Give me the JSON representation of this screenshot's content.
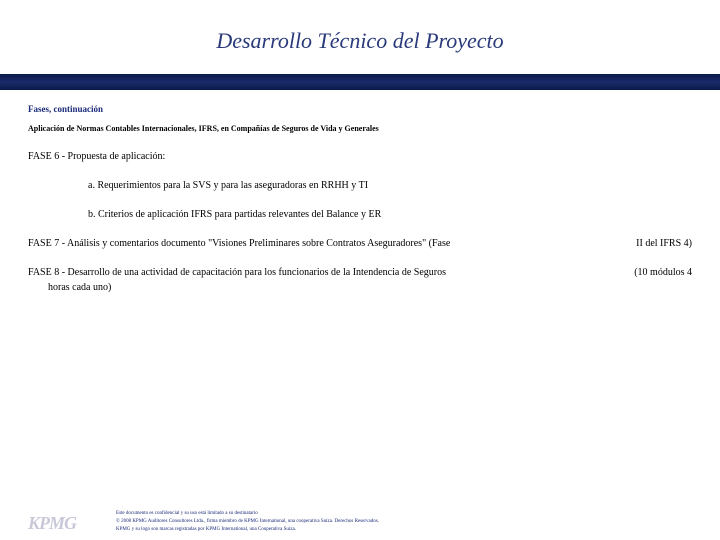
{
  "title": "Desarrollo Técnico del Proyecto",
  "section_label": "Fases, continuación",
  "subtitle": "Aplicación de Normas Contables Internacionales, IFRS, en Compañías de Seguros de Vida y Generales",
  "phase6": {
    "heading": "FASE 6 - Propuesta de aplicación:",
    "item_a": "a. Requerimientos para la SVS y para las aseguradoras en RRHH y TI",
    "item_b": "b. Criterios de aplicación IFRS para partidas relevantes del Balance y ER"
  },
  "phase7": {
    "left": "FASE 7 - Análisis y comentarios documento \"Visiones Preliminares sobre Contratos Aseguradores\" (Fase",
    "right": "II del IFRS 4)"
  },
  "phase8": {
    "left_line1": "FASE 8 - Desarrollo de una actividad de capacitación para los funcionarios de la Intendencia de Seguros",
    "left_line2": "horas cada uno)",
    "right": "(10 módulos 4"
  },
  "footer": {
    "logo": "KPMG",
    "line1": "Este documento es confidencial y su uso está limitado a su destinatario",
    "line2": "© 2008 KPMG Auditores Consultores Ltda., firma miembro de KPMG International, una cooperativa Suiza. Derechos Reservados.",
    "line3": "KPMG y su logo son marcas registradas por KPMG International, una Cooperativa Suiza."
  },
  "colors": {
    "title_color": "#2a3a7a",
    "band_dark": "#0a1a4a",
    "band_mid": "#1a2a6a",
    "section_color": "#1a2a7a",
    "logo_color": "#c8c8d8"
  }
}
